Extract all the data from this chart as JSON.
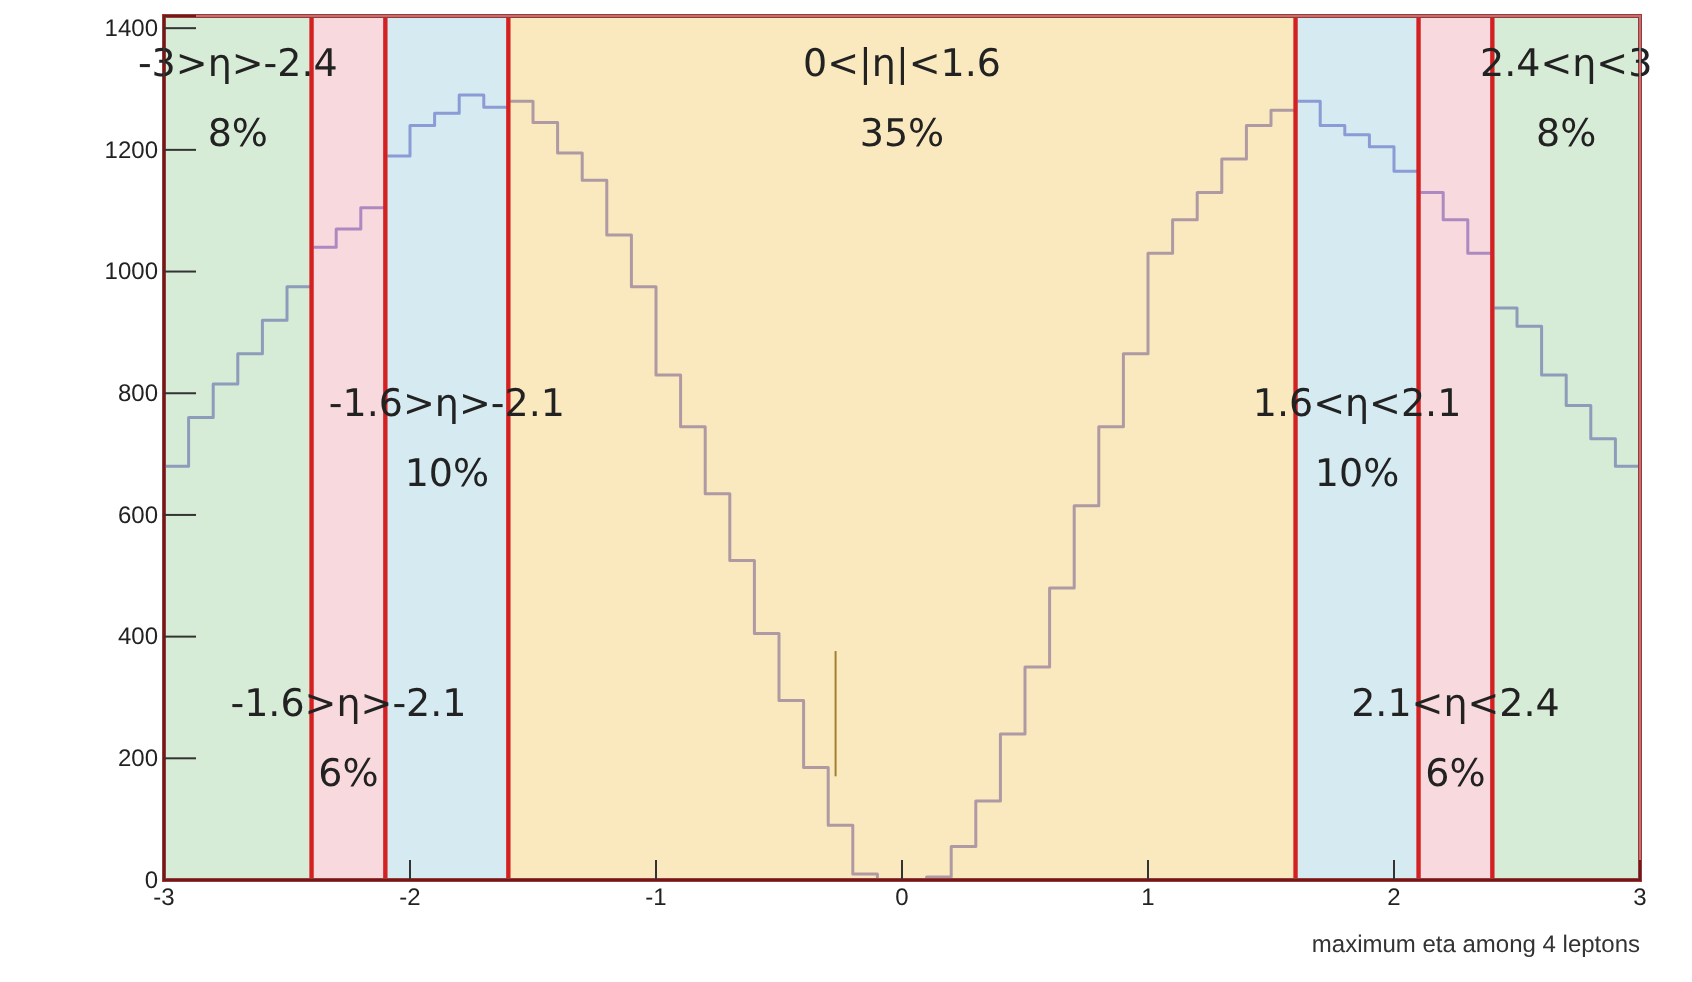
{
  "chart_data": {
    "type": "histogram",
    "xlabel": "maximum eta among 4 leptons",
    "bins": [
      -3,
      -2.9,
      -2.8,
      -2.7,
      -2.6,
      -2.5,
      -2.4,
      -2.3,
      -2.2,
      -2.1,
      -2,
      -1.9,
      -1.8,
      -1.7,
      -1.6,
      -1.5,
      -1.4,
      -1.3,
      -1.2,
      -1.1,
      -1,
      -0.9,
      -0.8,
      -0.7,
      -0.6,
      -0.5,
      -0.4,
      -0.3,
      -0.2,
      -0.1,
      0,
      0.1,
      0.2,
      0.3,
      0.4,
      0.5,
      0.6,
      0.7,
      0.8,
      0.9,
      1,
      1.1,
      1.2,
      1.3,
      1.4,
      1.5,
      1.6,
      1.7,
      1.8,
      1.9,
      2,
      2.1,
      2.2,
      2.3,
      2.4,
      2.5,
      2.6,
      2.7,
      2.8,
      2.9,
      3
    ],
    "values": [
      680,
      760,
      815,
      865,
      920,
      975,
      1040,
      1070,
      1105,
      1190,
      1240,
      1260,
      1290,
      1270,
      1280,
      1245,
      1195,
      1150,
      1060,
      975,
      830,
      745,
      635,
      525,
      405,
      295,
      185,
      90,
      10,
      0,
      0,
      5,
      55,
      130,
      240,
      350,
      480,
      615,
      745,
      865,
      1030,
      1085,
      1130,
      1185,
      1240,
      1265,
      1280,
      1240,
      1225,
      1205,
      1165,
      1130,
      1085,
      1030,
      940,
      910,
      830,
      780,
      725,
      680
    ],
    "color": "#5a4fc0",
    "xlim": [
      -3,
      3
    ],
    "xticks": [
      -3,
      -2,
      -1,
      0,
      1,
      2,
      3
    ],
    "ylim": [
      0,
      1420
    ],
    "yticks": [
      0,
      200,
      400,
      600,
      800,
      1000,
      1200,
      1400
    ],
    "grid": false,
    "bands": [
      {
        "axis": "x",
        "from": -3,
        "to": -2.4,
        "label": "-3>η>-2.4\n8%",
        "color": "#b6dcb4"
      },
      {
        "axis": "x",
        "from": -2.4,
        "to": -2.1,
        "label": "-1.6>η>-2.1\n6%",
        "color": "#f3b9c1"
      },
      {
        "axis": "x",
        "from": -2.1,
        "to": -1.6,
        "label": "-1.6>η>-2.1\n10%",
        "color": "#b3dbe6"
      },
      {
        "axis": "x",
        "from": -1.6,
        "to": 1.6,
        "label": "0<|η|<1.6\n35%",
        "color": "#f6d78b"
      },
      {
        "axis": "x",
        "from": 1.6,
        "to": 2.1,
        "label": "1.6<η<2.1\n10%",
        "color": "#b3dbe6"
      },
      {
        "axis": "x",
        "from": 2.1,
        "to": 2.4,
        "label": "2.1<η<2.4\n6%",
        "color": "#f3b9c1"
      },
      {
        "axis": "x",
        "from": 2.4,
        "to": 3,
        "label": "2.4<η<3\n8%",
        "color": "#b6dcb4"
      }
    ]
  }
}
